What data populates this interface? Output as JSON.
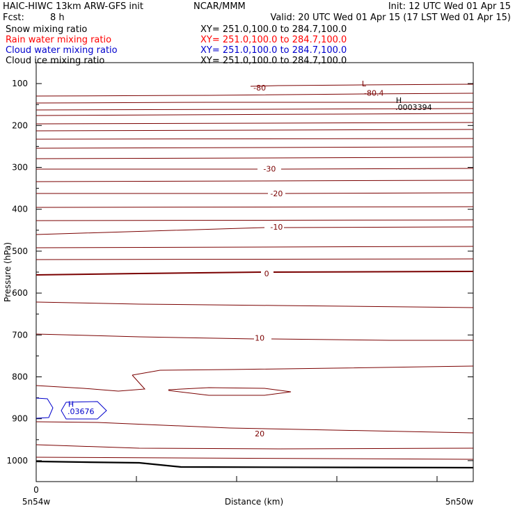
{
  "header": {
    "model": "HAIC-HIWC 13km ARW-GFS init",
    "org": "NCAR/MMM",
    "init": "Init: 12 UTC Wed 01 Apr 15",
    "fcst_label": "Fcst:",
    "fcst_value": "8 h",
    "valid": "Valid: 20 UTC Wed 01 Apr 15 (17 LST Wed 01 Apr 15)"
  },
  "legend": [
    {
      "name": "Snow mixing ratio",
      "xy": "XY= 251.0,100.0 to 284.7,100.0",
      "color": "#000000"
    },
    {
      "name": "Rain water mixing ratio",
      "xy": "XY= 251.0,100.0 to 284.7,100.0",
      "color": "#ff0000"
    },
    {
      "name": "Cloud water mixing ratio",
      "xy": "XY= 251.0,100.0 to 284.7,100.0",
      "color": "#0000cc"
    },
    {
      "name": "Cloud ice mixing ratio",
      "xy": "XY= 251.0,100.0 to 284.7,100.0",
      "color": "#000000"
    }
  ],
  "chart_data": {
    "type": "line",
    "ylabel": "Pressure (hPa)",
    "xlabel": "Distance (km)",
    "x_ticks": [
      "0"
    ],
    "x_start_label": "5n54w",
    "x_end_label": "5n50w",
    "y_ticks": [
      100,
      200,
      300,
      400,
      500,
      600,
      700,
      800,
      900,
      1000
    ],
    "ylim": [
      50,
      1050
    ],
    "xlim": [
      0,
      4.4
    ],
    "contour_color": "#7a0000",
    "labels": [
      {
        "text": "-80",
        "x": 2.25,
        "p": 110
      },
      {
        "text": "L",
        "x": 3.3,
        "p": 100
      },
      {
        "text": "-80.4",
        "x": 3.4,
        "p": 122
      },
      {
        "text": "H",
        "x": 3.65,
        "p": 140
      },
      {
        "text": ".0003394",
        "x": 3.8,
        "p": 156
      },
      {
        "text": "-30",
        "x": 2.35,
        "p": 303
      },
      {
        "text": "-20",
        "x": 2.42,
        "p": 362
      },
      {
        "text": "-10",
        "x": 2.42,
        "p": 442
      },
      {
        "text": "0",
        "x": 2.32,
        "p": 553
      },
      {
        "text": "10",
        "x": 2.25,
        "p": 707
      },
      {
        "text": "20",
        "x": 2.25,
        "p": 935
      },
      {
        "text": "H",
        "x": 0.35,
        "p": 865
      },
      {
        "text": ".03676",
        "x": 0.45,
        "p": 882
      }
    ],
    "blue_label_color": "#0000cc"
  }
}
